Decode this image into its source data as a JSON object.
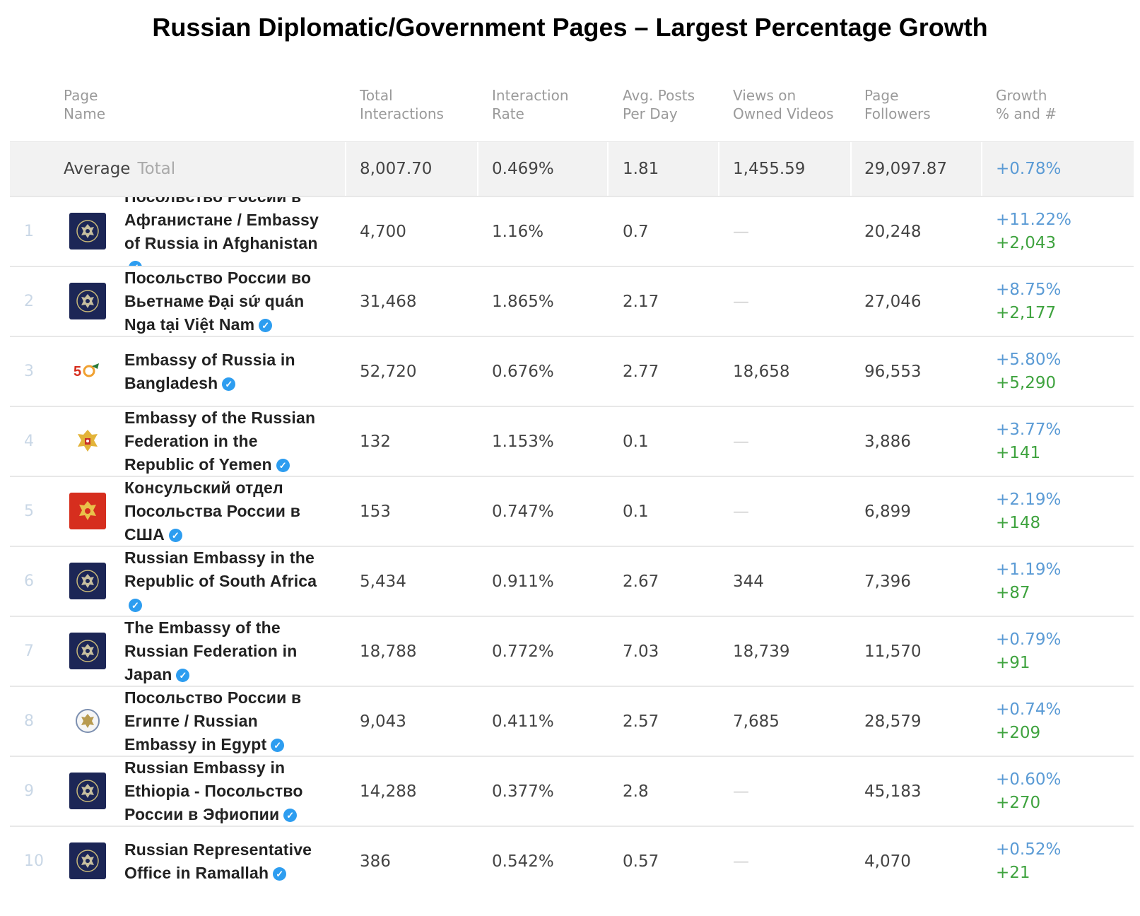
{
  "title": "Russian Diplomatic/Government Pages – Largest Percentage Growth",
  "columns": {
    "page_name": "Page\nName",
    "total_interactions": "Total\nInteractions",
    "interaction_rate": "Interaction\nRate",
    "avg_posts": "Avg. Posts\nPer Day",
    "views": "Views on\nOwned Videos",
    "followers": "Page\nFollowers",
    "growth": "Growth\n% and #"
  },
  "average": {
    "label": "Average",
    "sublabel": "Total",
    "total_interactions": "8,007.70",
    "interaction_rate": "0.469%",
    "avg_posts": "1.81",
    "views": "1,455.59",
    "followers": "29,097.87",
    "growth_pct": "+0.78%"
  },
  "rows": [
    {
      "rank": "1",
      "logo": "coat-of-arms-navy",
      "name": "Посольство России в Афганистане / Embassy of Russia in Afghanistan",
      "total_interactions": "4,700",
      "interaction_rate": "1.16%",
      "avg_posts": "0.7",
      "views": "—",
      "followers": "20,248",
      "growth_pct": "+11.22%",
      "growth_num": "+2,043"
    },
    {
      "rank": "2",
      "logo": "coat-of-arms-navy",
      "name": "Посольство России во Вьетнаме Đại sứ quán Nga tại Việt Nam",
      "total_interactions": "31,468",
      "interaction_rate": "1.865%",
      "avg_posts": "2.17",
      "views": "—",
      "followers": "27,046",
      "growth_pct": "+8.75%",
      "growth_num": "+2,177"
    },
    {
      "rank": "3",
      "logo": "50-anniversary",
      "name": "Embassy of Russia in Bangladesh",
      "total_interactions": "52,720",
      "interaction_rate": "0.676%",
      "avg_posts": "2.77",
      "views": "18,658",
      "followers": "96,553",
      "growth_pct": "+5.80%",
      "growth_num": "+5,290"
    },
    {
      "rank": "4",
      "logo": "coat-of-arms-gold",
      "name": "Embassy of the Russian Federation in the Republic of Yemen",
      "total_interactions": "132",
      "interaction_rate": "1.153%",
      "avg_posts": "0.1",
      "views": "—",
      "followers": "3,886",
      "growth_pct": "+3.77%",
      "growth_num": "+141"
    },
    {
      "rank": "5",
      "logo": "coat-of-arms-red",
      "name": "Консульский отдел Посольства России в США",
      "total_interactions": "153",
      "interaction_rate": "0.747%",
      "avg_posts": "0.1",
      "views": "—",
      "followers": "6,899",
      "growth_pct": "+2.19%",
      "growth_num": "+148"
    },
    {
      "rank": "6",
      "logo": "coat-of-arms-navy",
      "name": "Russian Embassy in the Republic of South Africa",
      "total_interactions": "5,434",
      "interaction_rate": "0.911%",
      "avg_posts": "2.67",
      "views": "344",
      "followers": "7,396",
      "growth_pct": "+1.19%",
      "growth_num": "+87"
    },
    {
      "rank": "7",
      "logo": "coat-of-arms-navy",
      "name": "The Embassy of the Russian Federation in Japan",
      "total_interactions": "18,788",
      "interaction_rate": "0.772%",
      "avg_posts": "7.03",
      "views": "18,739",
      "followers": "11,570",
      "growth_pct": "+0.79%",
      "growth_num": "+91"
    },
    {
      "rank": "8",
      "logo": "emblem-round",
      "name": "Посольство России в Египте / Russian Embassy in Egypt",
      "total_interactions": "9,043",
      "interaction_rate": "0.411%",
      "avg_posts": "2.57",
      "views": "7,685",
      "followers": "28,579",
      "growth_pct": "+0.74%",
      "growth_num": "+209"
    },
    {
      "rank": "9",
      "logo": "coat-of-arms-navy",
      "name": "Russian Embassy in Ethiopia - Посольство России в Эфиопии",
      "total_interactions": "14,288",
      "interaction_rate": "0.377%",
      "avg_posts": "2.8",
      "views": "—",
      "followers": "45,183",
      "growth_pct": "+0.60%",
      "growth_num": "+270"
    },
    {
      "rank": "10",
      "logo": "coat-of-arms-navy",
      "name": "Russian Representative Office in Ramallah",
      "total_interactions": "386",
      "interaction_rate": "0.542%",
      "avg_posts": "0.57",
      "views": "—",
      "followers": "4,070",
      "growth_pct": "+0.52%",
      "growth_num": "+21"
    }
  ],
  "colors": {
    "growth_pct": "#5b9bd5",
    "growth_num": "#3fa33f",
    "verified": "#2d9df0",
    "logo_navy": "#1c2656"
  }
}
